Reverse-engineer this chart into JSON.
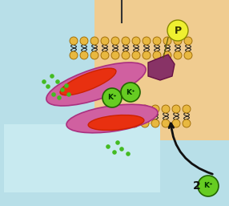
{
  "bg_color": "#b8dfe8",
  "cell_outside_color": "#f0cc90",
  "inner_rect_color": "#c8eaf0",
  "membrane_lipid_color": "#e8b840",
  "protein_purple_color": "#d060a0",
  "protein_purple_dark": "#aa3080",
  "protein_orange_color": "#e83010",
  "k_ion_color": "#66cc22",
  "k_ion_border": "#226600",
  "p_circle_color": "#eef030",
  "arrow_color": "#111111",
  "green_dots_color": "#44bb22",
  "k_label": "K⁺",
  "p_label": "P",
  "figsize": [
    2.86,
    2.57
  ],
  "dpi": 100
}
